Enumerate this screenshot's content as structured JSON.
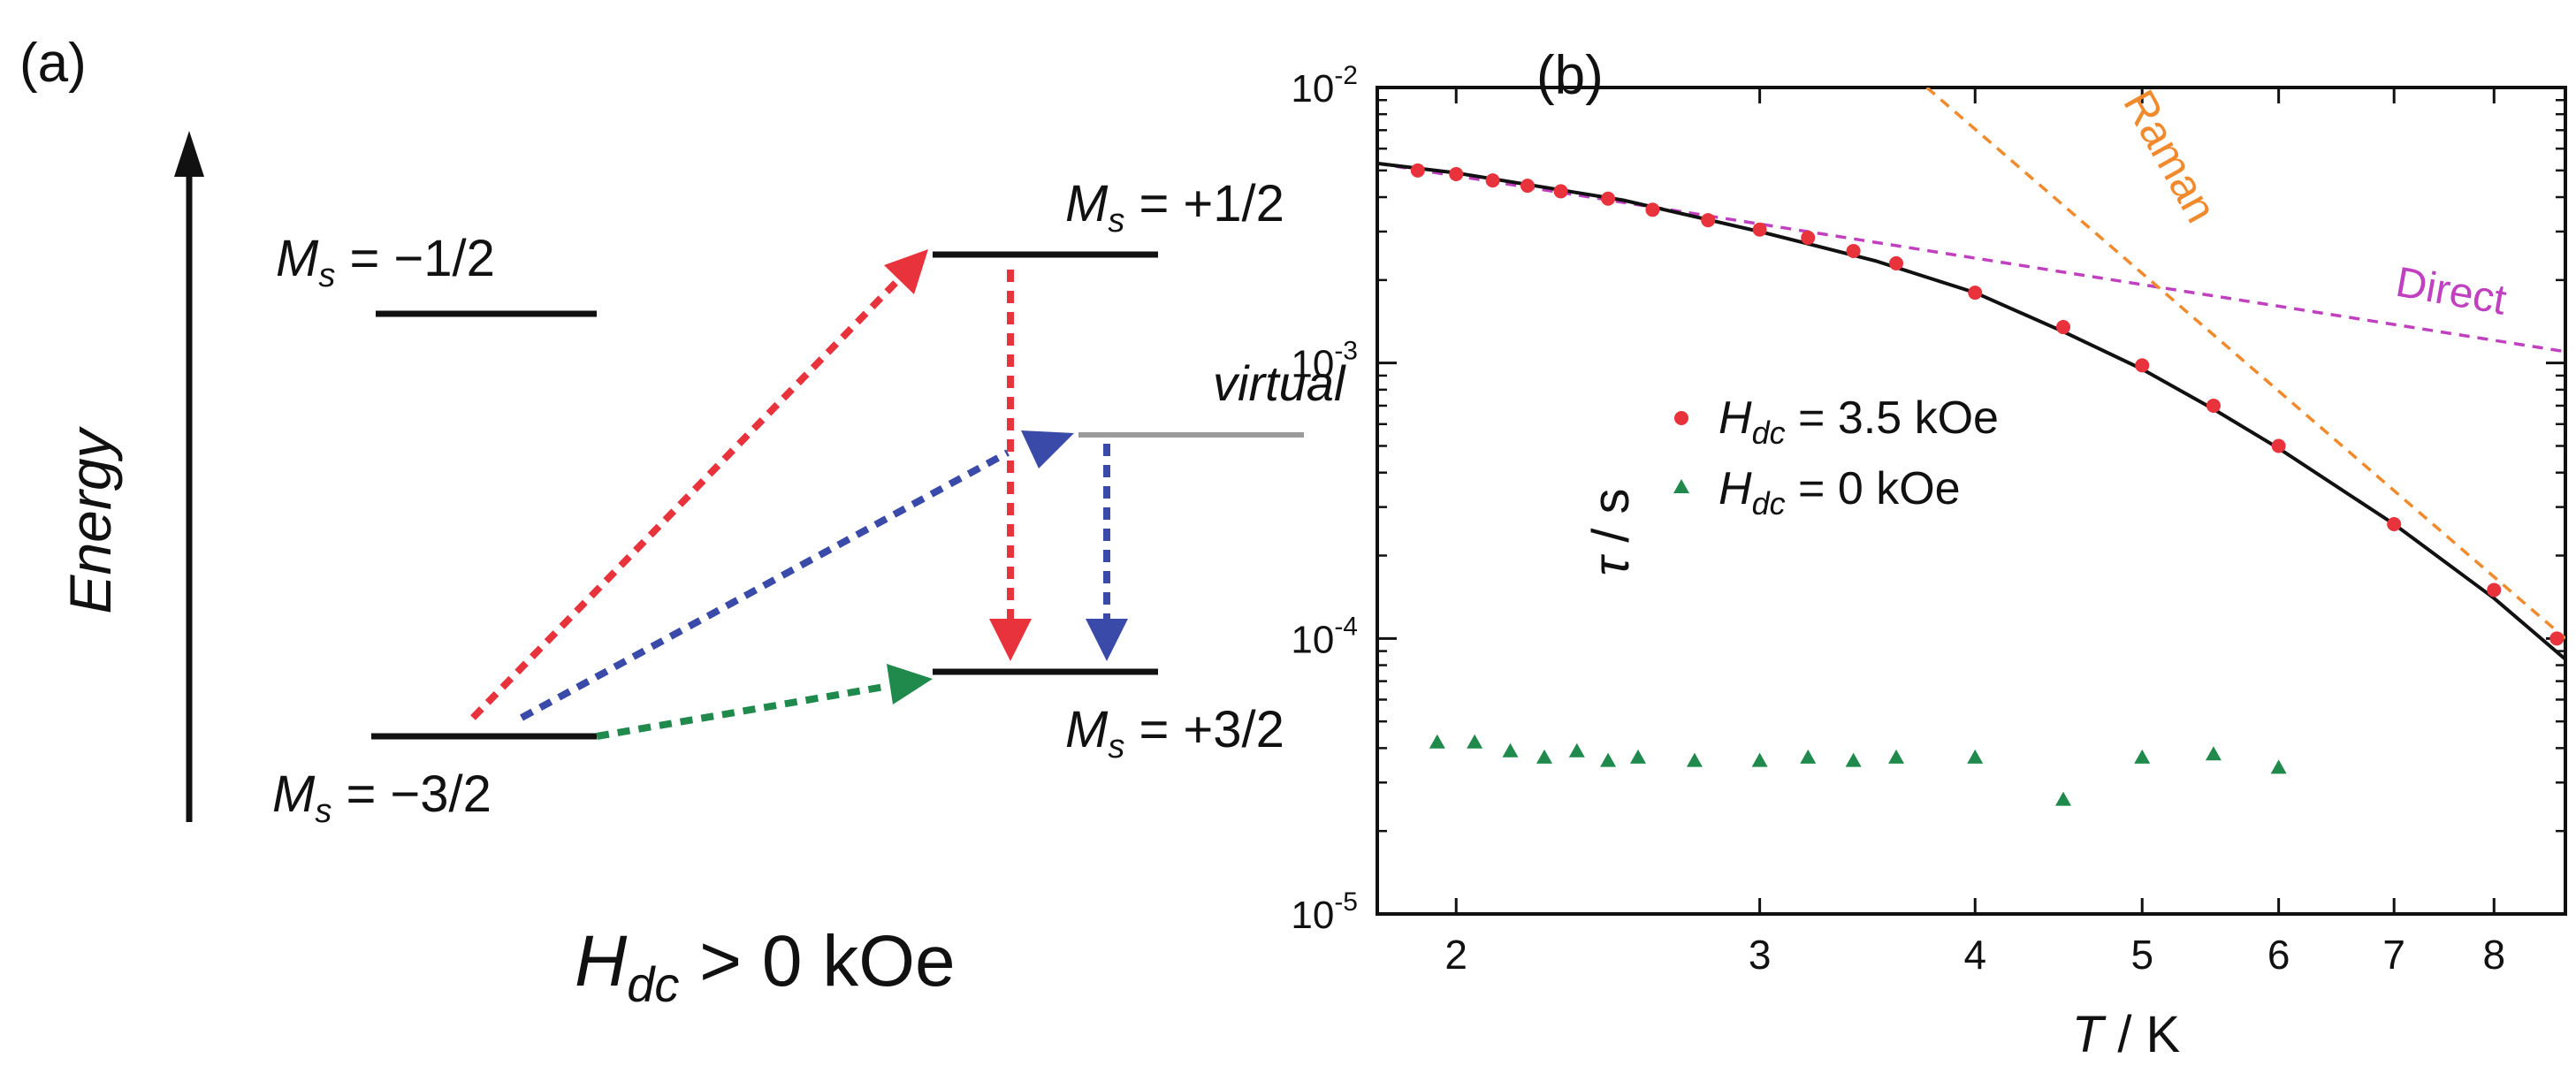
{
  "panel_a": {
    "label": "(a)",
    "energy_axis_label": "Energy",
    "levels": {
      "ms_minus_half": {
        "symbol": "M",
        "subscript": "s",
        "value": " = −1/2"
      },
      "ms_plus_half": {
        "symbol": "M",
        "subscript": "s",
        "value": " = +1/2"
      },
      "ms_minus_three_half": {
        "symbol": "M",
        "subscript": "s",
        "value": " = −3/2"
      },
      "ms_plus_three_half": {
        "symbol": "M",
        "subscript": "s",
        "value": " = +3/2"
      },
      "virtual": "virtual"
    },
    "field_label": {
      "symbol": "H",
      "subscript": "dc",
      "value": " > 0 kOe"
    },
    "colors": {
      "red": "#e8323c",
      "blue": "#3a4aa8",
      "green": "#1f8a4c",
      "gray": "#9a9a9a",
      "black": "#111111"
    }
  },
  "panel_b": {
    "label": "(b)",
    "x_axis_label": {
      "symbol": "T",
      "unit": " / K"
    },
    "y_axis_label": {
      "symbol": "τ",
      "unit": " / s"
    },
    "legend": [
      {
        "symbol": "H",
        "subscript": "dc",
        "value": " = 3.5 kOe",
        "marker": "circle",
        "color": "#e8323c"
      },
      {
        "symbol": "H",
        "subscript": "dc",
        "value": " = 0 kOe",
        "marker": "triangle",
        "color": "#1f8a4c"
      }
    ],
    "annotations": {
      "raman": "Raman",
      "direct": "Direct"
    }
  },
  "chart_data": {
    "type": "scatter",
    "title": "",
    "xlabel": "T / K",
    "ylabel": "τ / s",
    "xscale": "log",
    "yscale": "log",
    "xlim": [
      1.8,
      8.8
    ],
    "ylim": [
      1e-05,
      0.01
    ],
    "x_ticks": [
      2,
      3,
      4,
      5,
      6,
      7,
      8
    ],
    "x_tick_labels": [
      "2",
      "3",
      "4",
      "5",
      "6",
      "7",
      "8"
    ],
    "y_ticks": [
      1e-05,
      0.0001,
      0.001,
      0.01
    ],
    "y_tick_labels": [
      {
        "base": "10",
        "exp": "-5"
      },
      {
        "base": "10",
        "exp": "-4"
      },
      {
        "base": "10",
        "exp": "-3"
      },
      {
        "base": "10",
        "exp": "-2"
      }
    ],
    "series": [
      {
        "name": "H_dc = 3.5 kOe",
        "marker": "circle",
        "color": "#e8323c",
        "points": [
          [
            1.9,
            0.005
          ],
          [
            2.0,
            0.00485
          ],
          [
            2.1,
            0.0046
          ],
          [
            2.2,
            0.0044
          ],
          [
            2.3,
            0.0042
          ],
          [
            2.45,
            0.00395
          ],
          [
            2.6,
            0.0036
          ],
          [
            2.8,
            0.0033
          ],
          [
            3.0,
            0.00305
          ],
          [
            3.2,
            0.00285
          ],
          [
            3.4,
            0.00255
          ],
          [
            3.6,
            0.0023
          ],
          [
            4.0,
            0.0018
          ],
          [
            4.5,
            0.00135
          ],
          [
            5.0,
            0.00098
          ],
          [
            5.5,
            0.0007
          ],
          [
            6.0,
            0.0005
          ],
          [
            7.0,
            0.00026
          ],
          [
            8.0,
            0.00015
          ],
          [
            8.7,
            0.0001
          ]
        ]
      },
      {
        "name": "H_dc = 0 kOe",
        "marker": "triangle",
        "color": "#1f8a4c",
        "points": [
          [
            1.95,
            4.2e-05
          ],
          [
            2.05,
            4.2e-05
          ],
          [
            2.15,
            3.9e-05
          ],
          [
            2.25,
            3.7e-05
          ],
          [
            2.35,
            3.9e-05
          ],
          [
            2.45,
            3.6e-05
          ],
          [
            2.55,
            3.7e-05
          ],
          [
            2.75,
            3.6e-05
          ],
          [
            3.0,
            3.6e-05
          ],
          [
            3.2,
            3.7e-05
          ],
          [
            3.4,
            3.6e-05
          ],
          [
            3.6,
            3.7e-05
          ],
          [
            4.0,
            3.7e-05
          ],
          [
            4.5,
            2.6e-05
          ],
          [
            5.0,
            3.7e-05
          ],
          [
            5.5,
            3.8e-05
          ],
          [
            6.0,
            3.4e-05
          ]
        ]
      }
    ],
    "fit_lines": [
      {
        "name": "Direct",
        "color": "#c040c0",
        "style": "dashed",
        "points": [
          [
            1.8,
            0.0053
          ],
          [
            8.8,
            0.0011
          ]
        ]
      },
      {
        "name": "Raman",
        "color": "#f08a2c",
        "style": "dashed",
        "points": [
          [
            3.75,
            0.01
          ],
          [
            8.8,
            0.0001
          ]
        ]
      },
      {
        "name": "Total fit",
        "color": "#111111",
        "style": "solid",
        "points": [
          [
            1.8,
            0.0053
          ],
          [
            2.0,
            0.0049
          ],
          [
            2.5,
            0.0039
          ],
          [
            3.0,
            0.003
          ],
          [
            3.5,
            0.00235
          ],
          [
            4.0,
            0.0018
          ],
          [
            4.5,
            0.0013
          ],
          [
            5.0,
            0.00095
          ],
          [
            5.5,
            0.00068
          ],
          [
            6.0,
            0.00049
          ],
          [
            7.0,
            0.00026
          ],
          [
            8.0,
            0.00014
          ],
          [
            8.8,
            8.4e-05
          ]
        ]
      }
    ]
  }
}
